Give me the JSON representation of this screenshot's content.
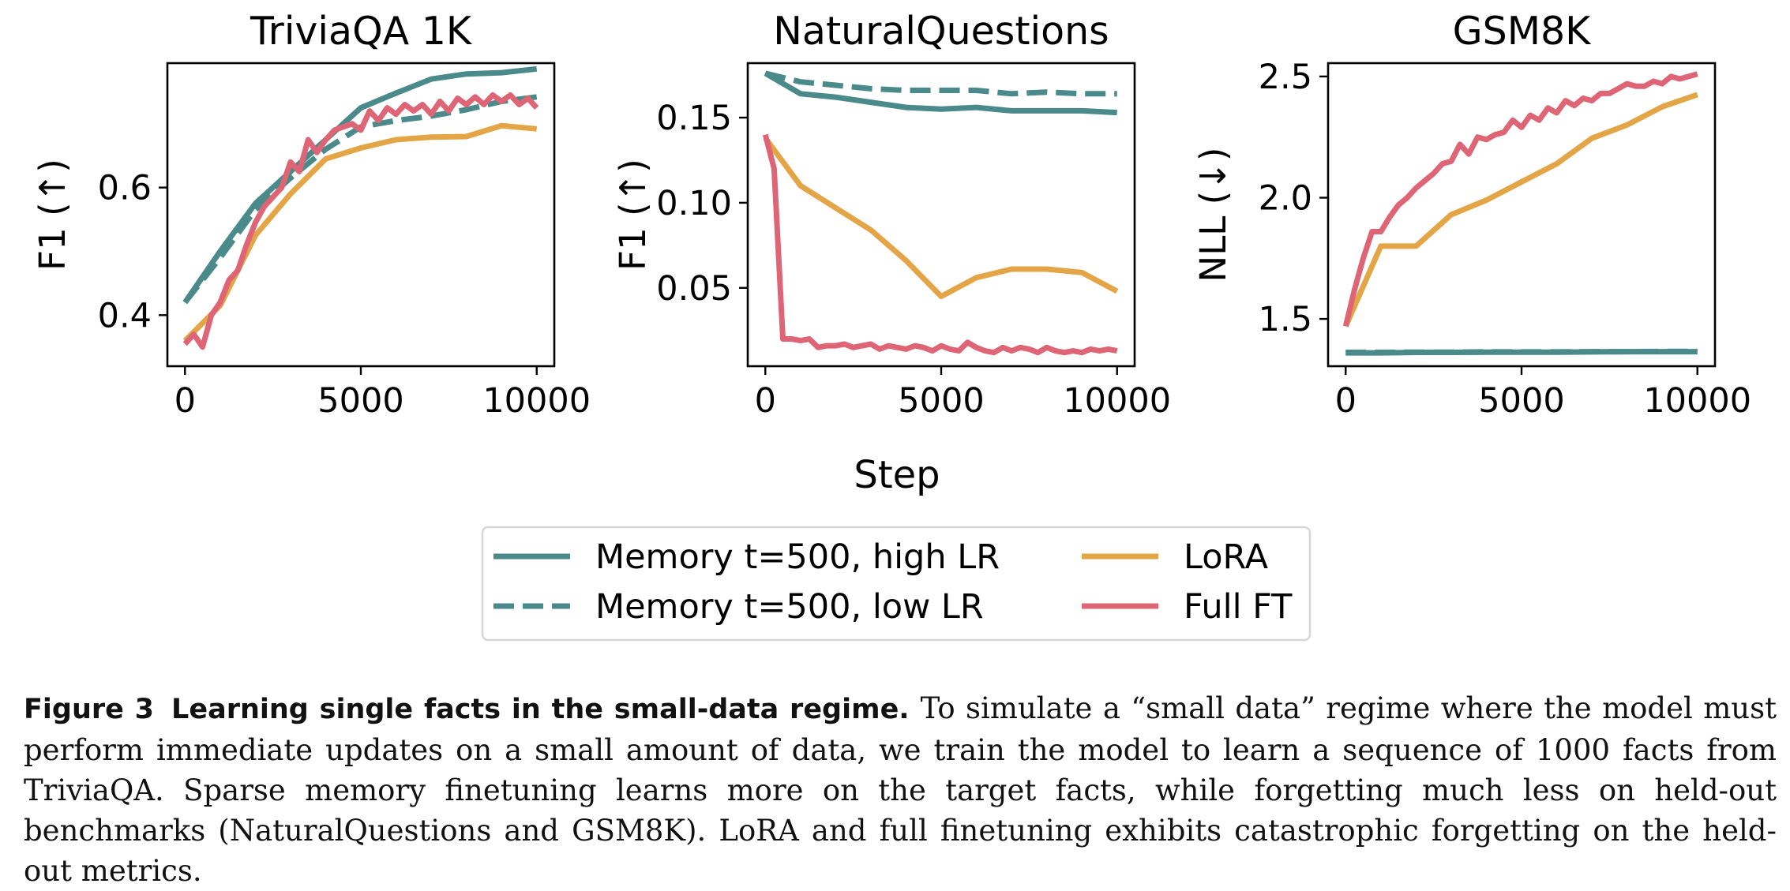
{
  "figure": {
    "shared_xlabel": "Step",
    "label": "Figure 3",
    "title": "Learning single facts in the small-data regime.",
    "body": "To simulate a “small data” regime where the model must perform immediate updates on a small amount of data, we train the model to learn a sequence of 1000 facts from TriviaQA. Sparse memory finetuning learns more on the target facts, while forgetting much less on held-out benchmarks (NaturalQuestions and GSM8K). LoRA and full finetuning exhibits catastrophic forgetting on the held-out metrics."
  },
  "legend": {
    "entries": [
      {
        "label": "Memory t=500, high LR",
        "color": "#4b8a8a",
        "dash": false
      },
      {
        "label": "Memory t=500, low LR",
        "color": "#4b8a8a",
        "dash": true
      },
      {
        "label": "LoRA",
        "color": "#e3a545",
        "dash": false
      },
      {
        "label": "Full FT",
        "color": "#dd6575",
        "dash": false
      }
    ]
  },
  "chart_data": [
    {
      "type": "line",
      "title": "TriviaQA 1K",
      "xlabel": "",
      "ylabel": "F1 (↑)",
      "xlim": [
        -500,
        10500
      ],
      "ylim": [
        0.32,
        0.795
      ],
      "xticks": [
        0,
        5000,
        10000
      ],
      "yticks": [
        0.4,
        0.6
      ],
      "ytick_labels": [
        "0.4",
        "0.6"
      ],
      "grid": false,
      "series": [
        {
          "name": "Memory t=500, high LR",
          "color": "#4b8a8a",
          "dash": false,
          "x": [
            0,
            1000,
            2000,
            3000,
            4000,
            5000,
            6000,
            7000,
            8000,
            9000,
            10000
          ],
          "y": [
            0.42,
            0.5,
            0.575,
            0.625,
            0.675,
            0.725,
            0.748,
            0.77,
            0.778,
            0.78,
            0.786
          ]
        },
        {
          "name": "Memory t=500, low LR",
          "color": "#4b8a8a",
          "dash": true,
          "x": [
            0,
            1000,
            2000,
            3000,
            4000,
            5000,
            6000,
            7000,
            8000,
            9000,
            10000
          ],
          "y": [
            0.42,
            0.49,
            0.565,
            0.615,
            0.66,
            0.695,
            0.705,
            0.712,
            0.722,
            0.735,
            0.742
          ]
        },
        {
          "name": "LoRA",
          "color": "#e3a545",
          "dash": false,
          "x": [
            0,
            1000,
            2000,
            3000,
            4000,
            5000,
            6000,
            7000,
            8000,
            9000,
            10000
          ],
          "y": [
            0.36,
            0.415,
            0.525,
            0.59,
            0.645,
            0.662,
            0.675,
            0.679,
            0.68,
            0.697,
            0.692
          ]
        },
        {
          "name": "Full FT",
          "color": "#dd6575",
          "dash": false,
          "x": [
            0,
            250,
            500,
            750,
            1000,
            1250,
            1500,
            1750,
            2000,
            2250,
            2500,
            2750,
            3000,
            3250,
            3500,
            3750,
            4000,
            4250,
            4500,
            4750,
            5000,
            5250,
            5500,
            5750,
            6000,
            6250,
            6500,
            6750,
            7000,
            7250,
            7500,
            7750,
            8000,
            8250,
            8500,
            8750,
            9000,
            9250,
            9500,
            9750,
            10000
          ],
          "y": [
            0.355,
            0.37,
            0.35,
            0.4,
            0.42,
            0.455,
            0.47,
            0.51,
            0.545,
            0.57,
            0.585,
            0.6,
            0.64,
            0.625,
            0.675,
            0.655,
            0.675,
            0.69,
            0.695,
            0.7,
            0.69,
            0.72,
            0.705,
            0.725,
            0.715,
            0.73,
            0.72,
            0.73,
            0.715,
            0.735,
            0.72,
            0.74,
            0.73,
            0.742,
            0.73,
            0.745,
            0.735,
            0.745,
            0.73,
            0.74,
            0.725
          ]
        }
      ]
    },
    {
      "type": "line",
      "title": "NaturalQuestions",
      "xlabel": "",
      "ylabel": "F1 (↑)",
      "xlim": [
        -500,
        10500
      ],
      "ylim": [
        0.004,
        0.182
      ],
      "xticks": [
        0,
        5000,
        10000
      ],
      "yticks": [
        0.05,
        0.1,
        0.15
      ],
      "ytick_labels": [
        "0.05",
        "0.10",
        "0.15"
      ],
      "grid": false,
      "series": [
        {
          "name": "Memory t=500, high LR",
          "color": "#4b8a8a",
          "dash": false,
          "x": [
            0,
            1000,
            2000,
            3000,
            4000,
            5000,
            6000,
            7000,
            8000,
            9000,
            10000
          ],
          "y": [
            0.176,
            0.164,
            0.162,
            0.159,
            0.156,
            0.155,
            0.156,
            0.154,
            0.154,
            0.154,
            0.153
          ]
        },
        {
          "name": "Memory t=500, low LR",
          "color": "#4b8a8a",
          "dash": true,
          "x": [
            0,
            1000,
            2000,
            3000,
            4000,
            5000,
            6000,
            7000,
            8000,
            9000,
            10000
          ],
          "y": [
            0.176,
            0.171,
            0.169,
            0.167,
            0.166,
            0.166,
            0.166,
            0.164,
            0.165,
            0.164,
            0.164
          ]
        },
        {
          "name": "LoRA",
          "color": "#e3a545",
          "dash": false,
          "x": [
            0,
            1000,
            2000,
            3000,
            4000,
            5000,
            6000,
            7000,
            8000,
            9000,
            10000
          ],
          "y": [
            0.138,
            0.11,
            0.097,
            0.084,
            0.066,
            0.045,
            0.056,
            0.061,
            0.061,
            0.059,
            0.048
          ]
        },
        {
          "name": "Full FT",
          "color": "#dd6575",
          "dash": false,
          "x": [
            0,
            250,
            500,
            750,
            1000,
            1250,
            1500,
            1750,
            2000,
            2250,
            2500,
            2750,
            3000,
            3250,
            3500,
            3750,
            4000,
            4250,
            4500,
            4750,
            5000,
            5250,
            5500,
            5750,
            6000,
            6250,
            6500,
            6750,
            7000,
            7250,
            7500,
            7750,
            8000,
            8250,
            8500,
            8750,
            9000,
            9250,
            9500,
            9750,
            10000
          ],
          "y": [
            0.14,
            0.12,
            0.02,
            0.02,
            0.019,
            0.02,
            0.015,
            0.016,
            0.016,
            0.017,
            0.015,
            0.016,
            0.017,
            0.014,
            0.016,
            0.015,
            0.014,
            0.016,
            0.015,
            0.013,
            0.016,
            0.014,
            0.013,
            0.018,
            0.015,
            0.013,
            0.012,
            0.015,
            0.013,
            0.015,
            0.014,
            0.012,
            0.015,
            0.013,
            0.012,
            0.013,
            0.012,
            0.014,
            0.013,
            0.014,
            0.013
          ]
        }
      ]
    },
    {
      "type": "line",
      "title": "GSM8K",
      "xlabel": "",
      "ylabel": "NLL (↓)",
      "xlim": [
        -500,
        10500
      ],
      "ylim": [
        1.305,
        2.555
      ],
      "xticks": [
        0,
        5000,
        10000
      ],
      "yticks": [
        1.5,
        2.0,
        2.5
      ],
      "ytick_labels": [
        "1.5",
        "2.0",
        "2.5"
      ],
      "grid": false,
      "series": [
        {
          "name": "Memory t=500, high LR",
          "color": "#4b8a8a",
          "dash": false,
          "x": [
            0,
            1000,
            2000,
            3000,
            4000,
            5000,
            6000,
            7000,
            8000,
            9000,
            10000
          ],
          "y": [
            1.36,
            1.36,
            1.362,
            1.362,
            1.363,
            1.363,
            1.363,
            1.364,
            1.365,
            1.365,
            1.365
          ]
        },
        {
          "name": "Memory t=500, low LR",
          "color": "#4b8a8a",
          "dash": true,
          "x": [
            0,
            1000,
            2000,
            3000,
            4000,
            5000,
            6000,
            7000,
            8000,
            9000,
            10000
          ],
          "y": [
            1.362,
            1.362,
            1.363,
            1.363,
            1.364,
            1.364,
            1.364,
            1.365,
            1.365,
            1.366,
            1.366
          ]
        },
        {
          "name": "LoRA",
          "color": "#e3a545",
          "dash": false,
          "x": [
            0,
            1000,
            2000,
            3000,
            4000,
            5000,
            6000,
            7000,
            8000,
            9000,
            10000
          ],
          "y": [
            1.47,
            1.8,
            1.8,
            1.93,
            1.99,
            2.065,
            2.14,
            2.245,
            2.3,
            2.375,
            2.425
          ]
        },
        {
          "name": "Full FT",
          "color": "#dd6575",
          "dash": false,
          "x": [
            0,
            250,
            500,
            750,
            1000,
            1250,
            1500,
            1750,
            2000,
            2250,
            2500,
            2750,
            3000,
            3250,
            3500,
            3750,
            4000,
            4250,
            4500,
            4750,
            5000,
            5250,
            5500,
            5750,
            6000,
            6250,
            6500,
            6750,
            7000,
            7250,
            7500,
            7750,
            8000,
            8250,
            8500,
            8750,
            9000,
            9250,
            9500,
            9750,
            10000
          ],
          "y": [
            1.47,
            1.62,
            1.75,
            1.86,
            1.86,
            1.92,
            1.97,
            2.0,
            2.04,
            2.07,
            2.1,
            2.14,
            2.15,
            2.22,
            2.18,
            2.25,
            2.24,
            2.26,
            2.27,
            2.32,
            2.29,
            2.34,
            2.32,
            2.37,
            2.35,
            2.4,
            2.38,
            2.41,
            2.4,
            2.43,
            2.43,
            2.45,
            2.47,
            2.46,
            2.46,
            2.48,
            2.47,
            2.5,
            2.49,
            2.5,
            2.51
          ]
        }
      ]
    }
  ]
}
